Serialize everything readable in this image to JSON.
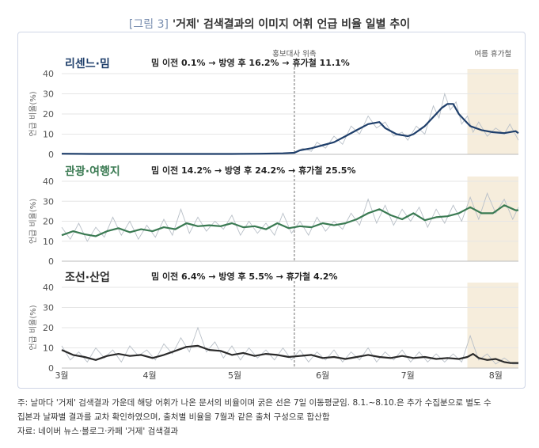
{
  "title": {
    "figure_no": "[그림 3]",
    "text": "'거제' 검색결과의 이미지 어휘 언급 비율 일별 추이"
  },
  "notes": [
    "주: 날마다 '거제' 검색결과 가운데 해당 어휘가 나온 문서의 비율이며 굵은 선은 7일 이동평균임. 8.1.~8.10.은 추가 수집분으로 별도 수",
    "집본과 날짜별 결과를 교차 확인하였으며, 출처별 비율을 7월과 같은 출처 구성으로 합산함",
    "자료: 네이버 뉴스·블로그·카페 '거제' 검색결과"
  ],
  "colors": {
    "blue": "#1f3f6b",
    "green": "#3a7a52",
    "dark": "#2a2a2a",
    "thin": "#b9c0c8",
    "vacation": "#f6eddc",
    "grid": "#e6e6e6",
    "event": "#888888"
  },
  "chart_data": {
    "type": "line",
    "x_axis": {
      "ticks": [
        "3월",
        "4월",
        "5월",
        "6월",
        "7월",
        "8월"
      ],
      "tick_days": [
        0,
        31,
        61,
        92,
        122,
        153
      ],
      "range_days": [
        0,
        161
      ]
    },
    "event": {
      "label": "홍보대사 위촉",
      "day": 82
    },
    "vacation": {
      "label": "여름 휴가철",
      "range_days": [
        143,
        161
      ]
    },
    "ylabel": "언급 비율(%)",
    "panels": [
      {
        "name": "리센느·밈",
        "summary": {
          "before_label": "밈 이전",
          "before": "0.1%",
          "after_label": "방영 후",
          "after": "16.2%",
          "vac_label": "휴가철",
          "vac": "11.1%"
        },
        "ylim": [
          0,
          40
        ],
        "yticks": [
          0,
          10,
          20,
          30,
          40
        ],
        "ma7": [
          [
            0,
            0.3
          ],
          [
            10,
            0.2
          ],
          [
            20,
            0.2
          ],
          [
            30,
            0.2
          ],
          [
            40,
            0.2
          ],
          [
            50,
            0.2
          ],
          [
            60,
            0.2
          ],
          [
            70,
            0.3
          ],
          [
            78,
            0.5
          ],
          [
            82,
            0.8
          ],
          [
            84,
            2
          ],
          [
            88,
            3
          ],
          [
            92,
            4.5
          ],
          [
            96,
            6
          ],
          [
            100,
            9
          ],
          [
            104,
            12
          ],
          [
            108,
            15
          ],
          [
            112,
            16
          ],
          [
            114,
            13
          ],
          [
            118,
            10
          ],
          [
            122,
            9
          ],
          [
            124,
            10
          ],
          [
            128,
            14
          ],
          [
            132,
            20
          ],
          [
            134,
            23
          ],
          [
            136,
            25
          ],
          [
            138,
            25
          ],
          [
            140,
            20
          ],
          [
            142,
            17
          ],
          [
            144,
            14
          ],
          [
            148,
            12
          ],
          [
            152,
            11
          ],
          [
            156,
            10.5
          ],
          [
            160,
            11.5
          ],
          [
            161,
            10.5
          ]
        ],
        "daily": [
          [
            0,
            0.3
          ],
          [
            20,
            0.2
          ],
          [
            40,
            0.2
          ],
          [
            60,
            0.2
          ],
          [
            78,
            0.6
          ],
          [
            82,
            1
          ],
          [
            85,
            3
          ],
          [
            88,
            1.5
          ],
          [
            90,
            6
          ],
          [
            93,
            3
          ],
          [
            96,
            9
          ],
          [
            99,
            5
          ],
          [
            102,
            14
          ],
          [
            105,
            10
          ],
          [
            108,
            19
          ],
          [
            111,
            13
          ],
          [
            114,
            16
          ],
          [
            117,
            9
          ],
          [
            120,
            11
          ],
          [
            122,
            7
          ],
          [
            125,
            14
          ],
          [
            128,
            10
          ],
          [
            131,
            24
          ],
          [
            133,
            18
          ],
          [
            135,
            30
          ],
          [
            137,
            22
          ],
          [
            139,
            26
          ],
          [
            141,
            15
          ],
          [
            143,
            19
          ],
          [
            145,
            11
          ],
          [
            147,
            16
          ],
          [
            150,
            9
          ],
          [
            153,
            13
          ],
          [
            156,
            10
          ],
          [
            158,
            15
          ],
          [
            161,
            7
          ]
        ]
      },
      {
        "name": "관광·여행지",
        "summary": {
          "before_label": "밈 이전",
          "before": "14.2%",
          "after_label": "방영 후",
          "after": "24.2%",
          "vac_label": "휴가철",
          "vac": "25.5%"
        },
        "ylim": [
          0,
          40
        ],
        "yticks": [
          0,
          10,
          20,
          30,
          40
        ],
        "ma7": [
          [
            0,
            13
          ],
          [
            4,
            15
          ],
          [
            8,
            13.5
          ],
          [
            12,
            12.5
          ],
          [
            16,
            15
          ],
          [
            20,
            16.5
          ],
          [
            24,
            14.5
          ],
          [
            28,
            16
          ],
          [
            32,
            15
          ],
          [
            36,
            17
          ],
          [
            40,
            16
          ],
          [
            44,
            19
          ],
          [
            48,
            17.5
          ],
          [
            52,
            18
          ],
          [
            56,
            17.5
          ],
          [
            60,
            19
          ],
          [
            64,
            17
          ],
          [
            68,
            17.5
          ],
          [
            72,
            16
          ],
          [
            76,
            19
          ],
          [
            80,
            16.5
          ],
          [
            84,
            17.5
          ],
          [
            88,
            17
          ],
          [
            92,
            19
          ],
          [
            96,
            18
          ],
          [
            100,
            19
          ],
          [
            104,
            21
          ],
          [
            108,
            24
          ],
          [
            112,
            26
          ],
          [
            116,
            23
          ],
          [
            120,
            21
          ],
          [
            124,
            24
          ],
          [
            128,
            20.5
          ],
          [
            132,
            22
          ],
          [
            136,
            22.5
          ],
          [
            140,
            24
          ],
          [
            144,
            27
          ],
          [
            148,
            24
          ],
          [
            152,
            24
          ],
          [
            156,
            28
          ],
          [
            160,
            25.5
          ],
          [
            161,
            25.5
          ]
        ],
        "daily": [
          [
            0,
            17
          ],
          [
            3,
            11
          ],
          [
            6,
            19
          ],
          [
            9,
            10
          ],
          [
            12,
            17
          ],
          [
            15,
            12
          ],
          [
            18,
            22
          ],
          [
            21,
            13
          ],
          [
            24,
            20
          ],
          [
            27,
            11
          ],
          [
            30,
            18
          ],
          [
            33,
            12
          ],
          [
            36,
            21
          ],
          [
            39,
            13
          ],
          [
            42,
            26
          ],
          [
            45,
            14
          ],
          [
            48,
            22
          ],
          [
            51,
            15
          ],
          [
            54,
            20
          ],
          [
            57,
            16
          ],
          [
            60,
            23
          ],
          [
            63,
            13
          ],
          [
            66,
            20
          ],
          [
            69,
            14
          ],
          [
            72,
            19
          ],
          [
            75,
            13
          ],
          [
            78,
            24
          ],
          [
            81,
            14
          ],
          [
            84,
            20
          ],
          [
            87,
            13
          ],
          [
            90,
            22
          ],
          [
            93,
            15
          ],
          [
            96,
            20
          ],
          [
            99,
            16
          ],
          [
            102,
            24
          ],
          [
            105,
            18
          ],
          [
            108,
            31
          ],
          [
            111,
            19
          ],
          [
            114,
            28
          ],
          [
            117,
            18
          ],
          [
            120,
            26
          ],
          [
            123,
            20
          ],
          [
            126,
            27
          ],
          [
            129,
            17
          ],
          [
            132,
            26
          ],
          [
            135,
            19
          ],
          [
            138,
            28
          ],
          [
            141,
            20
          ],
          [
            144,
            32
          ],
          [
            147,
            21
          ],
          [
            150,
            34
          ],
          [
            153,
            24
          ],
          [
            156,
            31
          ],
          [
            159,
            21
          ],
          [
            161,
            27
          ]
        ]
      },
      {
        "name": "조선·산업",
        "summary": {
          "before_label": "밈 이전",
          "before": "6.4%",
          "after_label": "방영 후",
          "after": "5.5%",
          "vac_label": "휴가철",
          "vac": "4.2%"
        },
        "ylim": [
          0,
          40
        ],
        "yticks": [
          0,
          10,
          20,
          30,
          40
        ],
        "ma7": [
          [
            0,
            9
          ],
          [
            4,
            6.5
          ],
          [
            8,
            5.5
          ],
          [
            12,
            4
          ],
          [
            16,
            6
          ],
          [
            20,
            7
          ],
          [
            24,
            6
          ],
          [
            28,
            6.5
          ],
          [
            32,
            5
          ],
          [
            36,
            6.5
          ],
          [
            40,
            8.5
          ],
          [
            44,
            10.5
          ],
          [
            48,
            11
          ],
          [
            52,
            9
          ],
          [
            56,
            8.5
          ],
          [
            60,
            6.5
          ],
          [
            64,
            7.5
          ],
          [
            68,
            6
          ],
          [
            72,
            7
          ],
          [
            76,
            6.5
          ],
          [
            80,
            5.5
          ],
          [
            84,
            6
          ],
          [
            88,
            6.5
          ],
          [
            92,
            5
          ],
          [
            96,
            5.5
          ],
          [
            100,
            4.5
          ],
          [
            104,
            5.5
          ],
          [
            108,
            6.5
          ],
          [
            112,
            5.5
          ],
          [
            116,
            5
          ],
          [
            120,
            6
          ],
          [
            124,
            5
          ],
          [
            128,
            5.5
          ],
          [
            132,
            4.5
          ],
          [
            136,
            5
          ],
          [
            140,
            4.5
          ],
          [
            143,
            5.5
          ],
          [
            145,
            7
          ],
          [
            147,
            5
          ],
          [
            150,
            4
          ],
          [
            153,
            4.5
          ],
          [
            156,
            3
          ],
          [
            158,
            2.5
          ],
          [
            161,
            2.5
          ]
        ],
        "daily": [
          [
            0,
            11
          ],
          [
            3,
            4
          ],
          [
            6,
            8
          ],
          [
            9,
            3
          ],
          [
            12,
            10
          ],
          [
            15,
            5
          ],
          [
            18,
            9
          ],
          [
            21,
            3
          ],
          [
            24,
            11
          ],
          [
            27,
            6
          ],
          [
            30,
            9
          ],
          [
            33,
            4
          ],
          [
            36,
            12
          ],
          [
            39,
            7
          ],
          [
            42,
            15
          ],
          [
            45,
            8
          ],
          [
            48,
            20
          ],
          [
            51,
            8
          ],
          [
            54,
            13
          ],
          [
            57,
            5
          ],
          [
            60,
            11
          ],
          [
            63,
            4
          ],
          [
            66,
            10
          ],
          [
            69,
            5
          ],
          [
            72,
            9
          ],
          [
            75,
            4
          ],
          [
            78,
            10
          ],
          [
            81,
            4
          ],
          [
            84,
            9
          ],
          [
            87,
            3
          ],
          [
            90,
            8
          ],
          [
            93,
            4
          ],
          [
            96,
            9
          ],
          [
            99,
            3
          ],
          [
            102,
            8
          ],
          [
            105,
            4
          ],
          [
            108,
            10
          ],
          [
            111,
            3
          ],
          [
            114,
            8
          ],
          [
            117,
            4
          ],
          [
            120,
            9
          ],
          [
            123,
            3
          ],
          [
            126,
            8
          ],
          [
            129,
            3
          ],
          [
            132,
            7
          ],
          [
            135,
            3
          ],
          [
            138,
            7
          ],
          [
            141,
            3
          ],
          [
            144,
            16
          ],
          [
            147,
            4
          ],
          [
            150,
            7
          ],
          [
            153,
            2
          ],
          [
            156,
            5
          ],
          [
            159,
            2
          ],
          [
            161,
            2
          ]
        ]
      }
    ]
  }
}
